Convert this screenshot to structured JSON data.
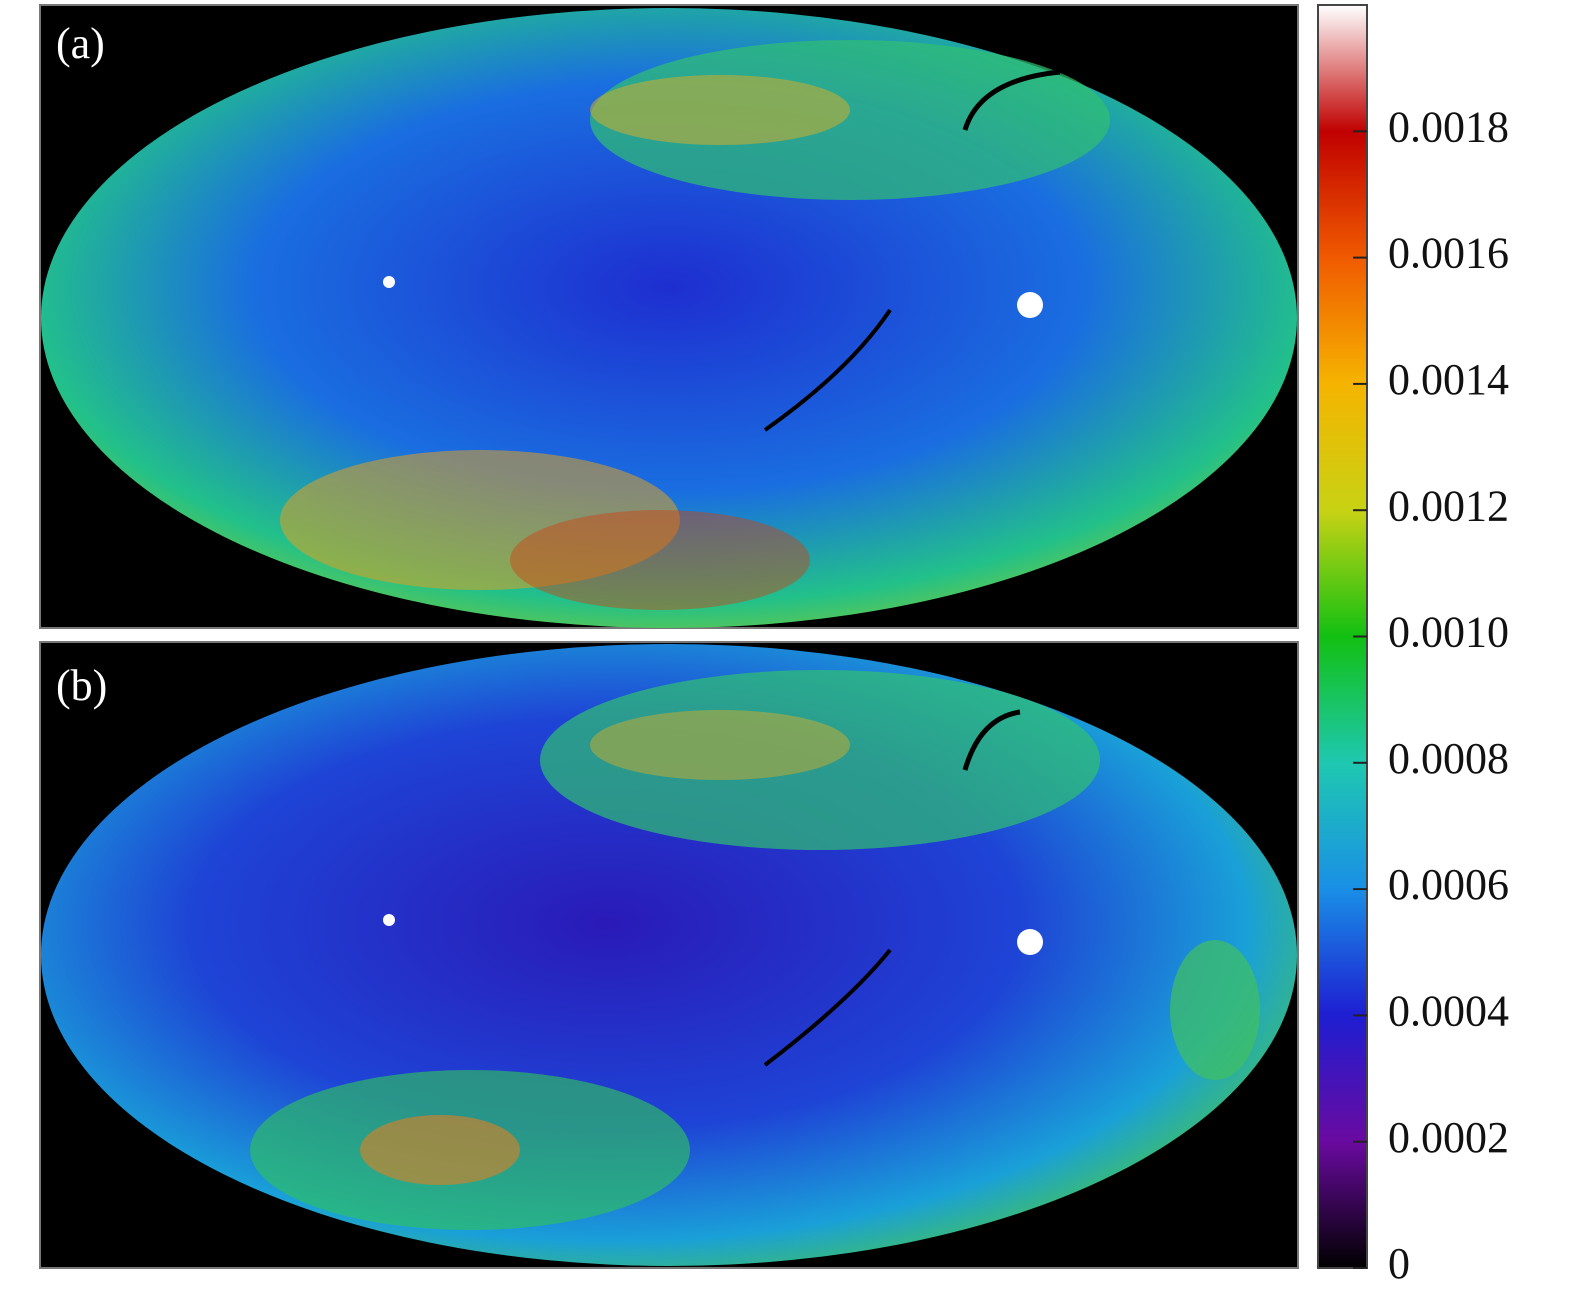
{
  "chart_data": {
    "type": "heatmap",
    "panels": [
      "(a)",
      "(b)"
    ],
    "colormap": [
      "#000000",
      "#6a0aa0",
      "#1e1ed2",
      "#1a8fe6",
      "#1ec8b0",
      "#12c012",
      "#c8d214",
      "#f5b400",
      "#f05a00",
      "#c00000",
      "#ffffff"
    ],
    "zlim": [
      0,
      0.002
    ],
    "zticks": [
      0,
      0.0002,
      0.0004,
      0.0006,
      0.0008,
      {
        "value": 0.001,
        "label": "0.0010"
      },
      0.0012,
      0.0014,
      0.0016,
      0.0018
    ]
  }
}
